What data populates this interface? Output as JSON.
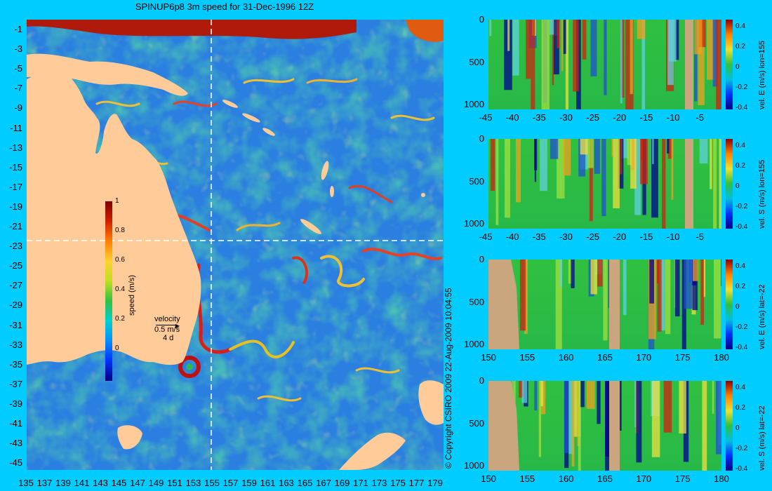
{
  "map": {
    "title": "SPINUP6p8 3m speed for 31-Dec-1996 12Z",
    "lat_labels": [
      "-1",
      "-3",
      "-5",
      "-7",
      "-9",
      "-11",
      "-13",
      "-15",
      "-17",
      "-19",
      "-21",
      "-23",
      "-25",
      "-27",
      "-29",
      "-31",
      "-33",
      "-35",
      "-37",
      "-39",
      "-41",
      "-43",
      "-45"
    ],
    "lon_labels": [
      "135",
      "137",
      "139",
      "141",
      "143",
      "145",
      "147",
      "149",
      "151",
      "153",
      "155",
      "157",
      "159",
      "161",
      "163",
      "165",
      "167",
      "169",
      "171",
      "173",
      "175",
      "177",
      "179"
    ],
    "speed_colorbar": {
      "label": "speed (m/s)",
      "ticks": [
        "1",
        "0.8",
        "0.6",
        "0.4",
        "0.2",
        "0"
      ]
    },
    "velocity_key": {
      "title": "velocity",
      "speed": "0.5 m/s",
      "time": "4 d"
    },
    "copyright": "© Copyright CSIRO 2009   22-Aug-2009 10:04:55",
    "colors": {
      "land": "#ffcc99",
      "ocean_low": "#1e64dc",
      "ocean_mid": "#2fb45a",
      "ocean_high": "#ffe04a",
      "jet": "#d21e1e",
      "background": "#00ccff"
    }
  },
  "sections": [
    {
      "name": "lon-section-east",
      "side_label": "vel. E (m/s) lon=155",
      "y_ticks": [
        "0",
        "500",
        "1000"
      ],
      "x_ticks": [
        "-45",
        "-40",
        "-35",
        "-30",
        "-25",
        "-20",
        "-15",
        "-10",
        "-5"
      ],
      "cb_ticks": [
        "0.4",
        "0.2",
        "0",
        "-0.2",
        "-0.4"
      ]
    },
    {
      "name": "lon-section-south",
      "side_label": "vel. S (m/s) lon=155",
      "y_ticks": [
        "0",
        "500",
        "1000"
      ],
      "x_ticks": [
        "-45",
        "-40",
        "-35",
        "-30",
        "-25",
        "-20",
        "-15",
        "-10",
        "-5"
      ],
      "cb_ticks": [
        "0.4",
        "0.2",
        "0",
        "-0.2",
        "-0.4"
      ]
    },
    {
      "name": "lat-section-east",
      "side_label": "vel. E (m/s) lat=-22",
      "y_ticks": [
        "0",
        "500",
        "1000"
      ],
      "x_ticks": [
        "150",
        "155",
        "160",
        "165",
        "170",
        "175",
        "180"
      ],
      "cb_ticks": [
        "0.4",
        "0.2",
        "0",
        "-0.2",
        "-0.4"
      ]
    },
    {
      "name": "lat-section-south",
      "side_label": "vel. S (m/s) lat=-22",
      "y_ticks": [
        "0",
        "500",
        "1000"
      ],
      "x_ticks": [
        "150",
        "155",
        "160",
        "165",
        "170",
        "175",
        "180"
      ],
      "cb_ticks": [
        "0.4",
        "0.2",
        "0",
        "-0.2",
        "-0.4"
      ]
    }
  ]
}
